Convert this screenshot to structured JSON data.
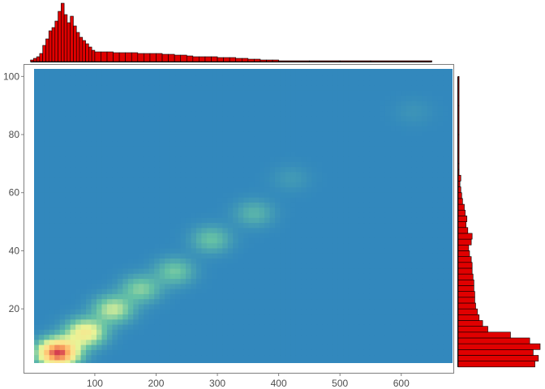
{
  "chart_data": {
    "type": "heatmap",
    "title": "",
    "xlabel": "",
    "ylabel": "",
    "xlim": [
      -15,
      685
    ],
    "ylim": [
      -2,
      104
    ],
    "x_ticks": [
      100,
      200,
      300,
      400,
      500,
      600
    ],
    "x_tick_labels": [
      "100",
      "200",
      "300",
      "400",
      "500",
      "600"
    ],
    "y_ticks": [
      20,
      40,
      60,
      80,
      100
    ],
    "y_tick_labels": [
      "20",
      "40",
      "60",
      "80",
      "100"
    ],
    "density_palette": [
      "#3288bd",
      "#66c2a5",
      "#e6f598",
      "#fee08b",
      "#fdae61",
      "#d53e4f"
    ],
    "density_peaks": [
      {
        "x": 40,
        "y": 5,
        "weight": 1.0
      },
      {
        "x": 85,
        "y": 12,
        "weight": 0.5
      },
      {
        "x": 130,
        "y": 20,
        "weight": 0.35
      },
      {
        "x": 175,
        "y": 27,
        "weight": 0.25
      },
      {
        "x": 230,
        "y": 33,
        "weight": 0.22
      },
      {
        "x": 290,
        "y": 44,
        "weight": 0.2
      },
      {
        "x": 360,
        "y": 53,
        "weight": 0.15
      },
      {
        "x": 420,
        "y": 65,
        "weight": 0.06
      },
      {
        "x": 620,
        "y": 88,
        "weight": 0.04
      }
    ],
    "top_histogram": {
      "bins": [
        [
          -5,
          0
        ],
        [
          0,
          5
        ],
        [
          5,
          10
        ],
        [
          10,
          15
        ],
        [
          15,
          20
        ],
        [
          20,
          25
        ],
        [
          25,
          30
        ],
        [
          30,
          35
        ],
        [
          35,
          40
        ],
        [
          40,
          45
        ],
        [
          45,
          50
        ],
        [
          50,
          55
        ],
        [
          55,
          60
        ],
        [
          60,
          65
        ],
        [
          65,
          70
        ],
        [
          70,
          75
        ],
        [
          75,
          80
        ],
        [
          80,
          85
        ],
        [
          85,
          90
        ],
        [
          90,
          95
        ],
        [
          95,
          100
        ],
        [
          100,
          110
        ],
        [
          110,
          120
        ],
        [
          120,
          130
        ],
        [
          130,
          140
        ],
        [
          140,
          150
        ],
        [
          150,
          160
        ],
        [
          160,
          170
        ],
        [
          170,
          180
        ],
        [
          180,
          190
        ],
        [
          190,
          200
        ],
        [
          200,
          210
        ],
        [
          210,
          220
        ],
        [
          220,
          230
        ],
        [
          230,
          240
        ],
        [
          240,
          250
        ],
        [
          250,
          260
        ],
        [
          260,
          270
        ],
        [
          270,
          280
        ],
        [
          280,
          290
        ],
        [
          290,
          300
        ],
        [
          300,
          310
        ],
        [
          310,
          320
        ],
        [
          320,
          330
        ],
        [
          330,
          340
        ],
        [
          340,
          350
        ],
        [
          350,
          360
        ],
        [
          360,
          370
        ],
        [
          370,
          380
        ],
        [
          380,
          390
        ],
        [
          390,
          400
        ],
        [
          400,
          450
        ],
        [
          450,
          500
        ],
        [
          500,
          550
        ],
        [
          550,
          650
        ]
      ],
      "counts": [
        2,
        4,
        6,
        10,
        20,
        28,
        38,
        42,
        50,
        62,
        72,
        58,
        48,
        56,
        44,
        36,
        30,
        26,
        22,
        18,
        14,
        12,
        12,
        12,
        11,
        11,
        11,
        11,
        10,
        10,
        10,
        10,
        9,
        9,
        8,
        8,
        7,
        6,
        6,
        6,
        6,
        5,
        5,
        5,
        4,
        4,
        3,
        3,
        2,
        2,
        2,
        1,
        1,
        1,
        1
      ]
    },
    "right_histogram": {
      "bins": [
        [
          0,
          2
        ],
        [
          2,
          4
        ],
        [
          4,
          6
        ],
        [
          6,
          8
        ],
        [
          8,
          10
        ],
        [
          10,
          12
        ],
        [
          12,
          14
        ],
        [
          14,
          16
        ],
        [
          16,
          18
        ],
        [
          18,
          20
        ],
        [
          20,
          22
        ],
        [
          22,
          24
        ],
        [
          24,
          26
        ],
        [
          26,
          28
        ],
        [
          28,
          30
        ],
        [
          30,
          32
        ],
        [
          32,
          34
        ],
        [
          34,
          36
        ],
        [
          36,
          38
        ],
        [
          38,
          40
        ],
        [
          40,
          42
        ],
        [
          42,
          44
        ],
        [
          44,
          46
        ],
        [
          46,
          48
        ],
        [
          48,
          50
        ],
        [
          50,
          52
        ],
        [
          52,
          54
        ],
        [
          54,
          56
        ],
        [
          56,
          58
        ],
        [
          58,
          60
        ],
        [
          60,
          62
        ],
        [
          62,
          64
        ],
        [
          64,
          66
        ],
        [
          66,
          68
        ],
        [
          68,
          70
        ],
        [
          70,
          80
        ],
        [
          80,
          90
        ],
        [
          90,
          100
        ]
      ],
      "counts": [
        88,
        92,
        86,
        94,
        82,
        60,
        34,
        28,
        24,
        22,
        20,
        19,
        19,
        18,
        18,
        17,
        16,
        16,
        15,
        13,
        12,
        15,
        16,
        11,
        9,
        10,
        8,
        7,
        5,
        4,
        3,
        2,
        3,
        1,
        1,
        1,
        1,
        1
      ]
    }
  }
}
